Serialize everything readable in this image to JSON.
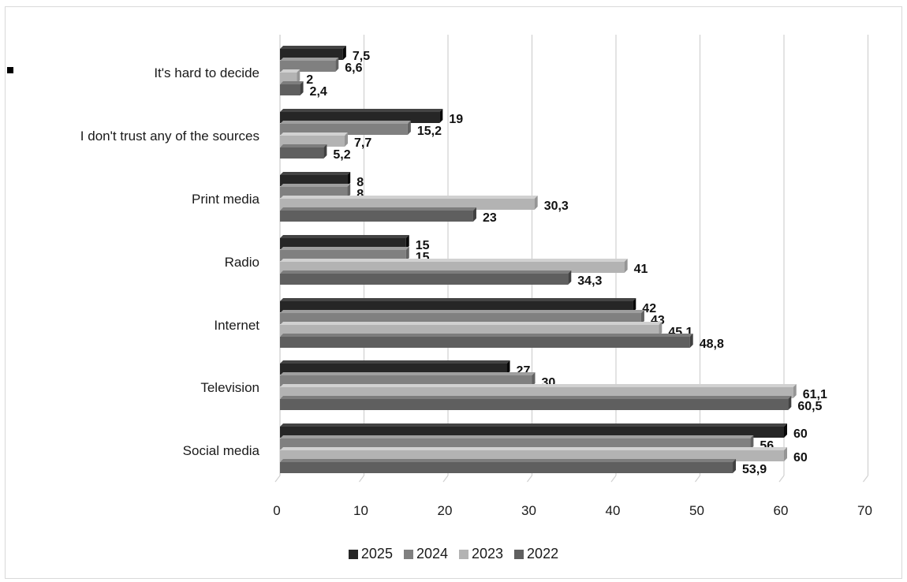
{
  "chart_data": {
    "type": "bar",
    "orientation": "horizontal",
    "categories": [
      "Social media",
      "Television",
      "Internet",
      "Radio",
      "Print media",
      "I don't trust any of the sources",
      "It's hard to decide"
    ],
    "series": [
      {
        "name": "2025",
        "color": "#262626",
        "values": [
          60,
          27,
          42,
          15,
          8,
          19,
          7.5
        ],
        "labels": [
          "60",
          "27",
          "42",
          "15",
          "8",
          "19",
          "7,5"
        ]
      },
      {
        "name": "2024",
        "color": "#808080",
        "values": [
          56,
          30,
          43,
          15,
          8,
          15.2,
          6.6
        ],
        "labels": [
          "56",
          "30",
          "43",
          "15",
          "8",
          "15,2",
          "6,6"
        ]
      },
      {
        "name": "2023",
        "color": "#b3b3b3",
        "values": [
          60,
          61.1,
          45.1,
          41,
          30.3,
          7.7,
          2
        ],
        "labels": [
          "60",
          "61,1",
          "45,1",
          "41",
          "30,3",
          "7,7",
          "2"
        ]
      },
      {
        "name": "2022",
        "color": "#5f5f5f",
        "values": [
          53.9,
          60.5,
          48.8,
          34.3,
          23,
          5.2,
          2.4
        ],
        "labels": [
          "53,9",
          "60,5",
          "48,8",
          "34,3",
          "23",
          "5,2",
          "2,4"
        ]
      }
    ],
    "xlim": [
      0,
      70
    ],
    "xticks": [
      0,
      10,
      20,
      30,
      40,
      50,
      60,
      70
    ],
    "grid": true,
    "legend_position": "bottom",
    "title": "",
    "xlabel": "",
    "ylabel": ""
  }
}
